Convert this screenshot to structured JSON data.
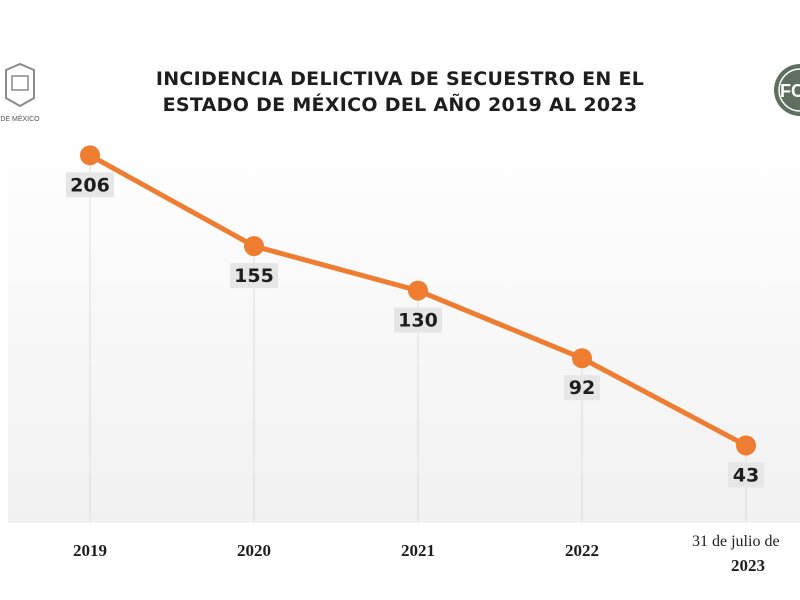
{
  "title_lines": [
    "INCIDENCIA DELICTIVA DE SECUESTRO EN EL",
    "ESTADO DE MÉXICO DEL AÑO 2019 AL 2023"
  ],
  "logos": {
    "left_text": "DE MÉXICO",
    "right_text": "FC"
  },
  "colors": {
    "line": "#ee7d31",
    "label_bg": "#e6e6e6",
    "text": "#1e1e1e"
  },
  "chart_data": {
    "type": "line",
    "title": "INCIDENCIA DELICTIVA DE SECUESTRO EN EL ESTADO DE MÉXICO DEL AÑO 2019 AL 2023",
    "categories": [
      "2019",
      "2020",
      "2021",
      "2022",
      "2023"
    ],
    "category_note": "31 de julio de",
    "values": [
      206,
      155,
      130,
      92,
      43
    ],
    "xlabel": "",
    "ylabel": "",
    "ylim": [
      0,
      230
    ],
    "grid": false,
    "legend": "none"
  }
}
